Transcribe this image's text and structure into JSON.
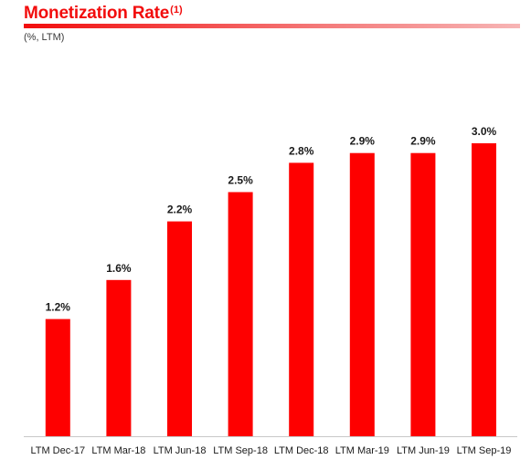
{
  "header": {
    "title": "Monetization Rate",
    "title_note": "(1)",
    "subtitle": "(%, LTM)"
  },
  "colors": {
    "accent": "#f20d0d",
    "bar": "#fe0000"
  },
  "chart_data": {
    "type": "bar",
    "categories": [
      "LTM Dec-17",
      "LTM Mar-18",
      "LTM Jun-18",
      "LTM Sep-18",
      "LTM Dec-18",
      "LTM Mar-19",
      "LTM Jun-19",
      "LTM Sep-19"
    ],
    "values": [
      1.2,
      1.6,
      2.2,
      2.5,
      2.8,
      2.9,
      2.9,
      3.0
    ],
    "data_labels": [
      "1.2%",
      "1.6%",
      "2.2%",
      "2.5%",
      "2.8%",
      "2.9%",
      "2.9%",
      "3.0%"
    ],
    "title": "Monetization Rate",
    "unit": "%",
    "ylim": [
      0,
      3.0
    ],
    "grid": false,
    "legend": "none"
  }
}
